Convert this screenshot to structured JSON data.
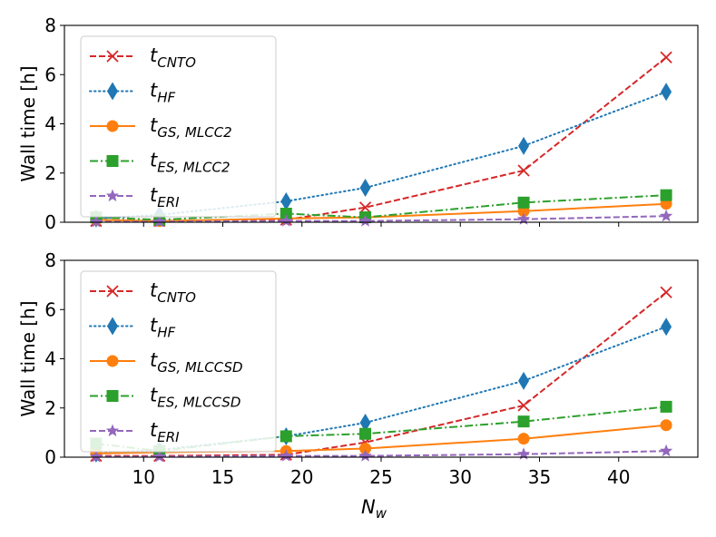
{
  "chart_data": [
    {
      "type": "line",
      "ylabel": "Wall time [h]",
      "xlabel": "",
      "xlim": [
        5,
        45
      ],
      "ylim": [
        0,
        8
      ],
      "xticks": [
        10,
        15,
        20,
        25,
        30,
        35,
        40
      ],
      "yticks": [
        0,
        2,
        4,
        6,
        8
      ],
      "show_xticklabels": false,
      "legend_position": "upper-left",
      "x": [
        7,
        11,
        19,
        24,
        34,
        43
      ],
      "series": [
        {
          "name": "CNTO",
          "label_main": "t",
          "label_sub": "CNTO",
          "color": "#d62728",
          "marker": "x",
          "linestyle": "dashed",
          "values": [
            0.05,
            0.05,
            0.1,
            0.6,
            2.1,
            6.7
          ]
        },
        {
          "name": "HF",
          "label_main": "t",
          "label_sub": "HF",
          "color": "#1f77b4",
          "marker": "diamond",
          "linestyle": "dotted",
          "values": [
            0.15,
            0.3,
            0.85,
            1.4,
            3.1,
            5.3
          ]
        },
        {
          "name": "GS,MLCC2",
          "label_main": "t",
          "label_sub": "GS, MLCC2",
          "color": "#ff7f0e",
          "marker": "circle",
          "linestyle": "solid",
          "values": [
            0.1,
            0.05,
            0.15,
            0.2,
            0.45,
            0.75
          ]
        },
        {
          "name": "ES,MLCC2",
          "label_main": "t",
          "label_sub": "ES, MLCC2",
          "color": "#2ca02c",
          "marker": "square",
          "linestyle": "dashdot",
          "values": [
            0.2,
            0.1,
            0.35,
            0.2,
            0.8,
            1.1
          ]
        },
        {
          "name": "ERI",
          "label_main": "t",
          "label_sub": "ERI",
          "color": "#9467bd",
          "marker": "star",
          "linestyle": "dashed",
          "values": [
            0.02,
            0.02,
            0.05,
            0.05,
            0.12,
            0.25
          ]
        }
      ]
    },
    {
      "type": "line",
      "ylabel": "Wall time [h]",
      "xlabel": "N",
      "xlabel_sub": "w",
      "xlim": [
        5,
        45
      ],
      "ylim": [
        0,
        8
      ],
      "xticks": [
        10,
        15,
        20,
        25,
        30,
        35,
        40
      ],
      "yticks": [
        0,
        2,
        4,
        6,
        8
      ],
      "show_xticklabels": true,
      "legend_position": "upper-left",
      "x": [
        7,
        11,
        19,
        24,
        34,
        43
      ],
      "series": [
        {
          "name": "CNTO",
          "label_main": "t",
          "label_sub": "CNTO",
          "color": "#d62728",
          "marker": "x",
          "linestyle": "dashed",
          "values": [
            0.05,
            0.05,
            0.1,
            0.6,
            2.1,
            6.7
          ]
        },
        {
          "name": "HF",
          "label_main": "t",
          "label_sub": "HF",
          "color": "#1f77b4",
          "marker": "diamond",
          "linestyle": "dotted",
          "values": [
            0.15,
            0.3,
            0.85,
            1.4,
            3.1,
            5.3
          ]
        },
        {
          "name": "GS,MLCCSD",
          "label_main": "t",
          "label_sub": "GS, MLCCSD",
          "color": "#ff7f0e",
          "marker": "circle",
          "linestyle": "solid",
          "values": [
            0.15,
            0.2,
            0.25,
            0.35,
            0.75,
            1.3
          ]
        },
        {
          "name": "ES,MLCCSD",
          "label_main": "t",
          "label_sub": "ES, MLCCSD",
          "color": "#2ca02c",
          "marker": "square",
          "linestyle": "dashdot",
          "values": [
            0.55,
            0.25,
            0.85,
            0.95,
            1.45,
            2.05
          ]
        },
        {
          "name": "ERI",
          "label_main": "t",
          "label_sub": "ERI",
          "color": "#9467bd",
          "marker": "star",
          "linestyle": "dashed",
          "values": [
            0.02,
            0.02,
            0.05,
            0.05,
            0.12,
            0.25
          ]
        }
      ]
    }
  ]
}
